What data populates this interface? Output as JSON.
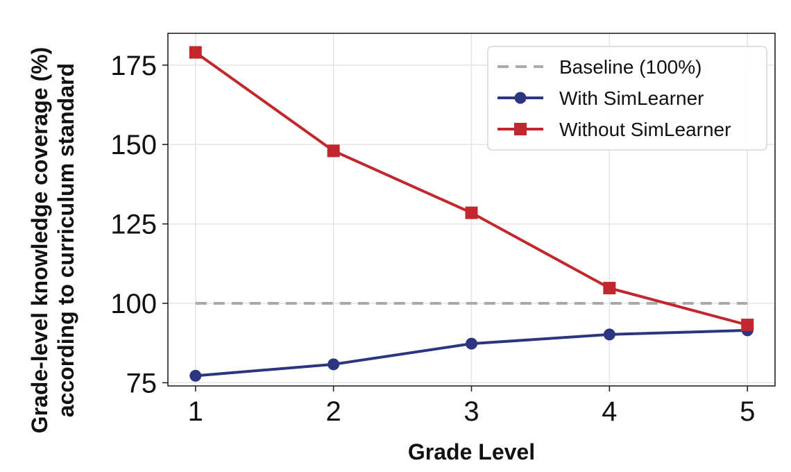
{
  "chart_data": {
    "type": "line",
    "x": [
      1,
      2,
      3,
      4,
      5
    ],
    "series": [
      {
        "name": "Baseline (100%)",
        "values": [
          100,
          100,
          100,
          100,
          100
        ],
        "color": "#aaaaaa",
        "style": "dashed",
        "marker": "none"
      },
      {
        "name": "With SimLearner",
        "values": [
          77.2,
          80.8,
          87.3,
          90.2,
          91.5
        ],
        "color": "#2b3580",
        "style": "solid",
        "marker": "circle"
      },
      {
        "name": "Without SimLearner",
        "values": [
          179,
          148,
          128.5,
          104.8,
          93.2
        ],
        "color": "#c1272d",
        "style": "solid",
        "marker": "square"
      }
    ],
    "xlabel": "Grade Level",
    "ylabel_lines": [
      "Grade-level knowledge coverage (%)",
      "according to curriculum standard"
    ],
    "xticks": [
      1,
      2,
      3,
      4,
      5
    ],
    "yticks": [
      75,
      100,
      125,
      150,
      175
    ],
    "xlim": [
      0.8,
      5.2
    ],
    "ylim": [
      74,
      185
    ],
    "grid": true,
    "legend_position": "top-right"
  }
}
